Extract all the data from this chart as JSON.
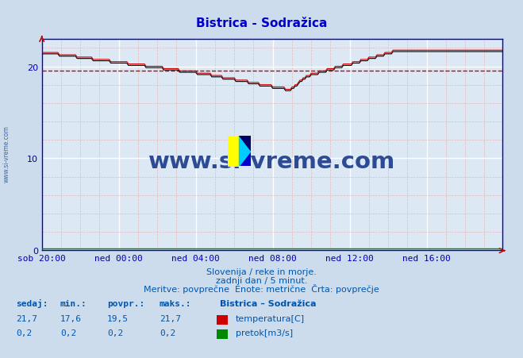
{
  "title": "Bistrica - Sodražica",
  "bg_color": "#ccdcec",
  "plot_bg_color": "#dce8f4",
  "grid_major_color": "#ffffff",
  "grid_minor_color": "#e8b8b8",
  "title_color": "#0000cc",
  "axis_color": "#0000cc",
  "tick_label_color": "#0000aa",
  "text_color": "#0055aa",
  "temp_color": "#cc0000",
  "black_line_color": "#000000",
  "pretok_color": "#008800",
  "avg_line_color": "#cc0000",
  "x_tick_labels": [
    "sob 20:00",
    "ned 00:00",
    "ned 04:00",
    "ned 08:00",
    "ned 12:00",
    "ned 16:00"
  ],
  "x_tick_pos": [
    0,
    48,
    96,
    144,
    192,
    240
  ],
  "y_ticks": [
    0,
    10,
    20
  ],
  "ylim": [
    0,
    23.0
  ],
  "xlim": [
    0,
    287
  ],
  "avg_value": 19.5,
  "subtitle1": "Slovenija / reke in morje.",
  "subtitle2": "zadnji dan / 5 minut.",
  "subtitle3": "Meritve: povprečne  Enote: metrične  Črta: povprečje",
  "legend_title": "Bistrica – Sodražica",
  "col_headers": [
    "sedaj:",
    "min.:",
    "povpr.:",
    "maks.:"
  ],
  "temp_vals": [
    "21,7",
    "17,6",
    "19,5",
    "21,7"
  ],
  "pretok_vals": [
    "0,2",
    "0,2",
    "0,2",
    "0,2"
  ],
  "temp_label": "temperatura[C]",
  "pretok_label": "pretok[m3/s]",
  "watermark": "www.si-vreme.com",
  "watermark_color": "#1a3a8a",
  "sivreme_vert_color": "#4466aa"
}
